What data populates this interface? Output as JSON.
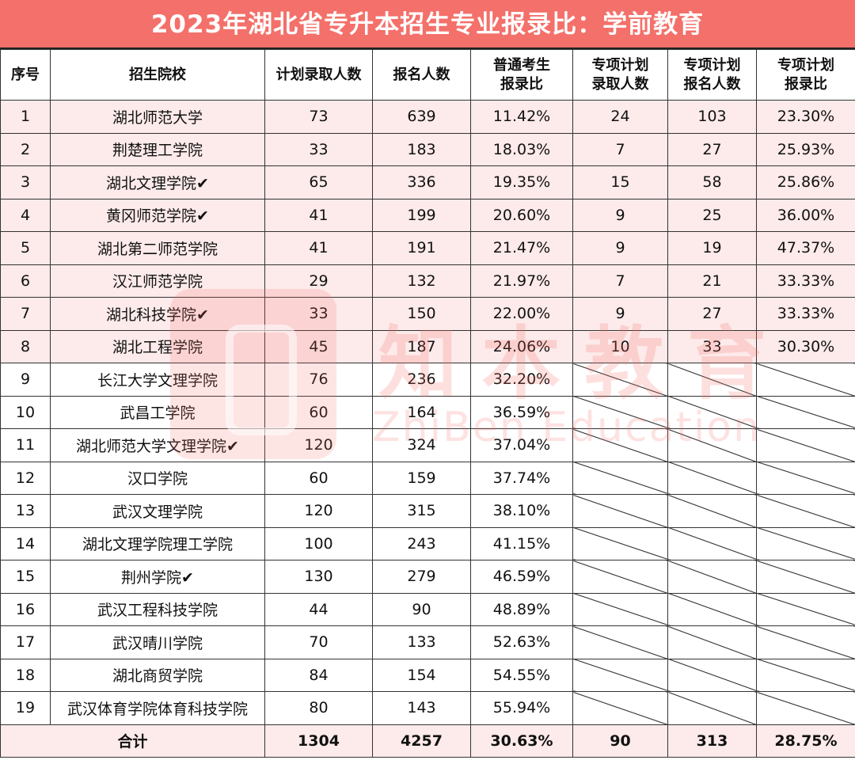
{
  "title": "2023年湖北省专升本招生专业报录比：学前教育",
  "headers": {
    "no": "序号",
    "school": "招生院校",
    "plan": "计划录取人数",
    "applicants": "报名人数",
    "ratio_line1": "普通考生",
    "ratio_line2": "报录比",
    "sp_plan_line1": "专项计划",
    "sp_plan_line2": "录取人数",
    "sp_app_line1": "专项计划",
    "sp_app_line2": "报名人数",
    "sp_ratio_line1": "专项计划",
    "sp_ratio_line2": "报录比"
  },
  "rows": [
    {
      "no": "1",
      "school": "湖北师范大学",
      "check": "",
      "plan": "73",
      "applicants": "639",
      "ratio": "11.42%",
      "sp_plan": "24",
      "sp_app": "103",
      "sp_ratio": "23.30%"
    },
    {
      "no": "2",
      "school": "荆楚理工学院",
      "check": "",
      "plan": "33",
      "applicants": "183",
      "ratio": "18.03%",
      "sp_plan": "7",
      "sp_app": "27",
      "sp_ratio": "25.93%"
    },
    {
      "no": "3",
      "school": "湖北文理学院",
      "check": "✔",
      "plan": "65",
      "applicants": "336",
      "ratio": "19.35%",
      "sp_plan": "15",
      "sp_app": "58",
      "sp_ratio": "25.86%"
    },
    {
      "no": "4",
      "school": "黄冈师范学院",
      "check": "✔",
      "plan": "41",
      "applicants": "199",
      "ratio": "20.60%",
      "sp_plan": "9",
      "sp_app": "25",
      "sp_ratio": "36.00%"
    },
    {
      "no": "5",
      "school": "湖北第二师范学院",
      "check": "",
      "plan": "41",
      "applicants": "191",
      "ratio": "21.47%",
      "sp_plan": "9",
      "sp_app": "19",
      "sp_ratio": "47.37%"
    },
    {
      "no": "6",
      "school": "汉江师范学院",
      "check": "",
      "plan": "29",
      "applicants": "132",
      "ratio": "21.97%",
      "sp_plan": "7",
      "sp_app": "21",
      "sp_ratio": "33.33%"
    },
    {
      "no": "7",
      "school": "湖北科技学院",
      "check": "✔",
      "plan": "33",
      "applicants": "150",
      "ratio": "22.00%",
      "sp_plan": "9",
      "sp_app": "27",
      "sp_ratio": "33.33%"
    },
    {
      "no": "8",
      "school": "湖北工程学院",
      "check": "",
      "plan": "45",
      "applicants": "187",
      "ratio": "24.06%",
      "sp_plan": "10",
      "sp_app": "33",
      "sp_ratio": "30.30%"
    },
    {
      "no": "9",
      "school": "长江大学文理学院",
      "check": "",
      "plan": "76",
      "applicants": "236",
      "ratio": "32.20%"
    },
    {
      "no": "10",
      "school": "武昌工学院",
      "check": "",
      "plan": "60",
      "applicants": "164",
      "ratio": "36.59%"
    },
    {
      "no": "11",
      "school": "湖北师范大学文理学院",
      "check": "✔",
      "plan": "120",
      "applicants": "324",
      "ratio": "37.04%"
    },
    {
      "no": "12",
      "school": "汉口学院",
      "check": "",
      "plan": "60",
      "applicants": "159",
      "ratio": "37.74%"
    },
    {
      "no": "13",
      "school": "武汉文理学院",
      "check": "",
      "plan": "120",
      "applicants": "315",
      "ratio": "38.10%"
    },
    {
      "no": "14",
      "school": "湖北文理学院理工学院",
      "check": "",
      "plan": "100",
      "applicants": "243",
      "ratio": "41.15%"
    },
    {
      "no": "15",
      "school": "荆州学院",
      "check": "✔",
      "plan": "130",
      "applicants": "279",
      "ratio": "46.59%"
    },
    {
      "no": "16",
      "school": "武汉工程科技学院",
      "check": "",
      "plan": "44",
      "applicants": "90",
      "ratio": "48.89%"
    },
    {
      "no": "17",
      "school": "武汉晴川学院",
      "check": "",
      "plan": "70",
      "applicants": "133",
      "ratio": "52.63%"
    },
    {
      "no": "18",
      "school": "湖北商贸学院",
      "check": "",
      "plan": "84",
      "applicants": "154",
      "ratio": "54.55%"
    },
    {
      "no": "19",
      "school": "武汉体育学院体育科技学院",
      "check": "",
      "plan": "80",
      "applicants": "143",
      "ratio": "55.94%"
    }
  ],
  "total": {
    "label": "合计",
    "plan": "1304",
    "applicants": "4257",
    "ratio": "30.63%",
    "sp_plan": "90",
    "sp_app": "313",
    "sp_ratio": "28.75%"
  },
  "watermark": {
    "cn": "知本教育",
    "en": "ZhiBen Education"
  },
  "colors": {
    "title_bg": "#f4706a",
    "highlight_row": "#fdeaea",
    "red_value": "#e8201c"
  }
}
